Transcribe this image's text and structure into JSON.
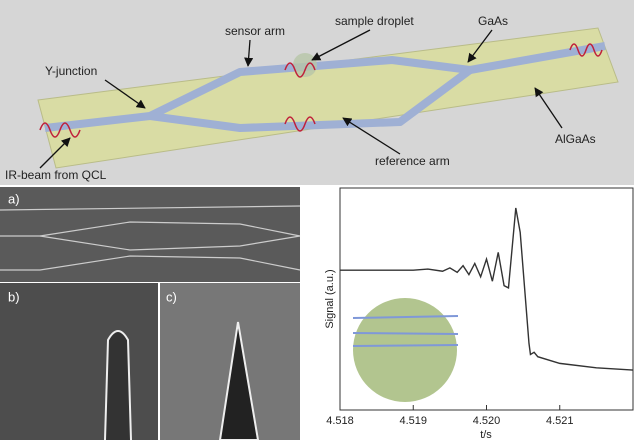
{
  "diagram": {
    "labels": {
      "sensor_arm": "sensor arm",
      "sample_droplet": "sample droplet",
      "gaas": "GaAs",
      "y_junction": "Y-junction",
      "algaas": "AlGaAs",
      "ir_beam": "IR-beam from QCL",
      "reference_arm": "reference arm"
    }
  },
  "panels": {
    "a": "a)",
    "b": "b)",
    "c": "c)"
  },
  "chart_data": {
    "type": "line",
    "ylabel": "Signal (a.u.)",
    "xlabel": "t/s",
    "color": "#333333",
    "x": [
      4.518,
      4.519,
      4.5192,
      4.5194,
      4.5195,
      4.5196,
      4.51968,
      4.51976,
      4.51984,
      4.51992,
      4.52,
      4.52008,
      4.52016,
      4.52024,
      4.5203,
      4.5204,
      4.52046,
      4.52052,
      4.52058,
      4.5206,
      4.52065,
      4.5207,
      4.521,
      4.5215,
      4.522
    ],
    "values": [
      0.63,
      0.63,
      0.635,
      0.625,
      0.64,
      0.62,
      0.65,
      0.61,
      0.66,
      0.6,
      0.68,
      0.58,
      0.71,
      0.56,
      0.55,
      0.91,
      0.8,
      0.55,
      0.3,
      0.25,
      0.26,
      0.24,
      0.21,
      0.19,
      0.18
    ],
    "xlim": [
      4.518,
      4.522
    ],
    "ylim": [
      0,
      1
    ],
    "xticks": [
      {
        "value": 4.518,
        "label": "4.518"
      },
      {
        "value": 4.519,
        "label": "4.519"
      },
      {
        "value": 4.52,
        "label": "4.520"
      },
      {
        "value": 4.521,
        "label": "4.521"
      }
    ]
  }
}
